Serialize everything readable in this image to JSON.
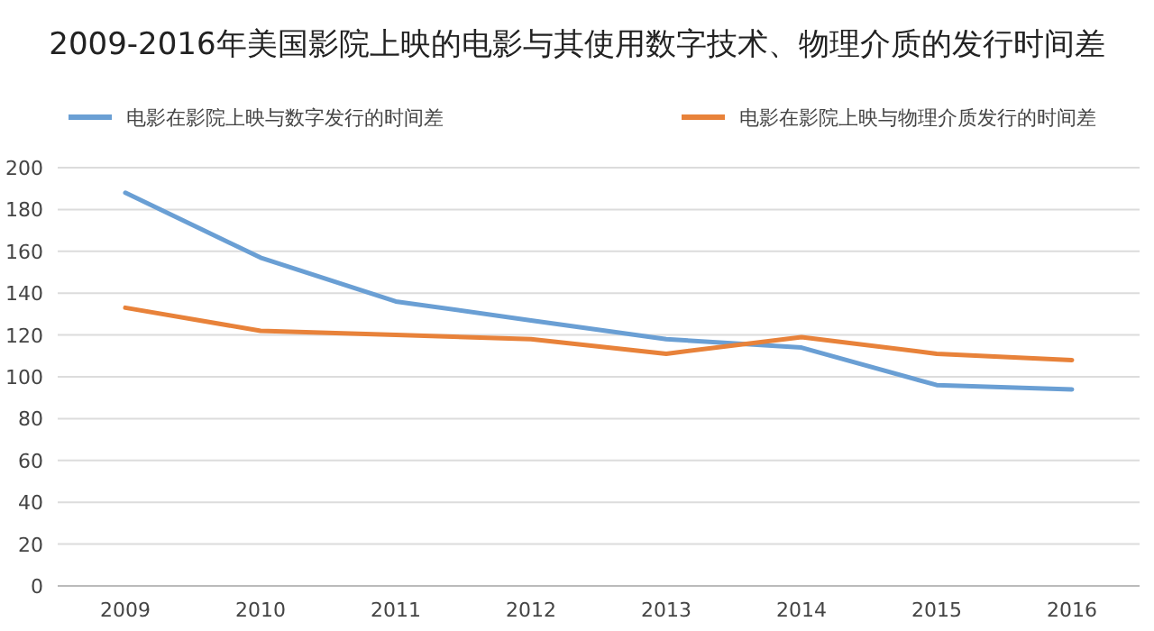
{
  "chart_data": {
    "type": "line",
    "title": "2009-2016年美国影院上映的电影与其使用数字技术、物理介质的发行时间差",
    "categories": [
      "2009",
      "2010",
      "2011",
      "2012",
      "2013",
      "2014",
      "2015",
      "2016"
    ],
    "series": [
      {
        "name": "电影在影院上映与数字发行的时间差",
        "color": "#6a9fd4",
        "values": [
          188,
          157,
          136,
          127,
          118,
          114,
          96,
          94
        ]
      },
      {
        "name": "电影在影院上映与物理介质发行的时间差",
        "color": "#e8823a",
        "values": [
          133,
          122,
          120,
          118,
          111,
          119,
          111,
          108
        ]
      }
    ],
    "ylim": [
      0,
      200
    ],
    "yticks": [
      0,
      20,
      40,
      60,
      80,
      100,
      120,
      140,
      160,
      180,
      200
    ],
    "grid": "y",
    "legend": "top",
    "marker": "none"
  }
}
